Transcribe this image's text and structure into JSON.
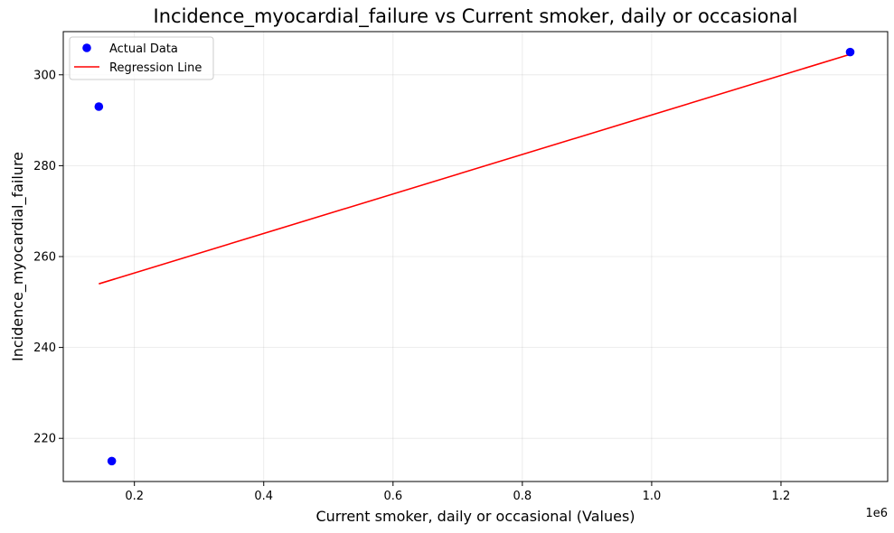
{
  "chart_data": {
    "type": "scatter",
    "title": "Incidence_myocardial_failure vs Current smoker, daily or occasional",
    "xlabel": "Current smoker, daily or occasional (Values)",
    "ylabel": "Incidence_myocardial_failure",
    "x_offset_label": "1e6",
    "xlim": [
      90000,
      1365000
    ],
    "ylim": [
      210.5,
      309.5
    ],
    "xticks": [
      200000,
      400000,
      600000,
      800000,
      1000000,
      1200000
    ],
    "xtick_labels": [
      "0.2",
      "0.4",
      "0.6",
      "0.8",
      "1.0",
      "1.2"
    ],
    "yticks": [
      220,
      240,
      260,
      280,
      300
    ],
    "ytick_labels": [
      "220",
      "240",
      "260",
      "280",
      "300"
    ],
    "grid": true,
    "legend_position": "top-left",
    "series": [
      {
        "name": "Actual Data",
        "kind": "scatter",
        "color": "#0000ff",
        "points": [
          {
            "x": 145000,
            "y": 293
          },
          {
            "x": 165000,
            "y": 215
          },
          {
            "x": 1307000,
            "y": 305
          }
        ]
      },
      {
        "name": "Regression Line",
        "kind": "line",
        "color": "#ff0000",
        "points": [
          {
            "x": 145000,
            "y": 254
          },
          {
            "x": 1307000,
            "y": 304.5
          }
        ]
      }
    ]
  }
}
